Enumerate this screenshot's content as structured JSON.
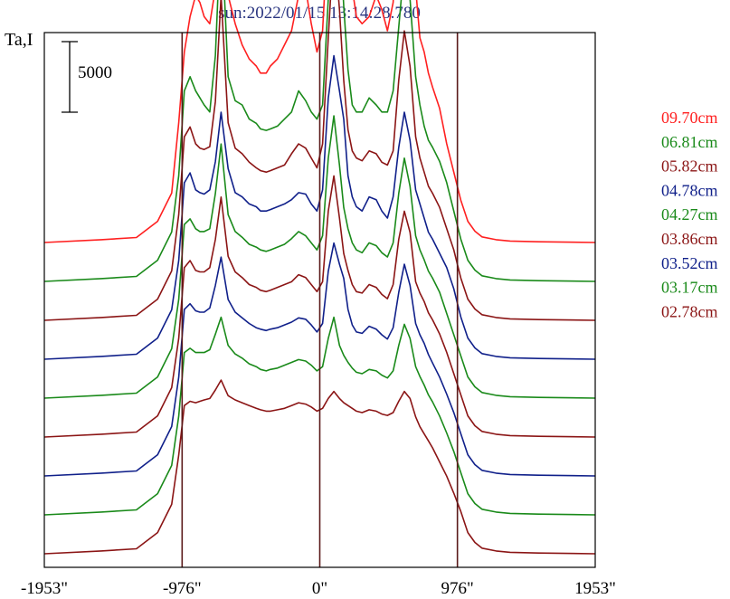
{
  "chart_data": {
    "type": "line",
    "title": "sun:2022/01/15 13:14:28.780",
    "ylabel": "Ta,I",
    "scale_bar_label": "5000",
    "scale_bar_value": 5000,
    "xlim": [
      -1953,
      1953
    ],
    "x_ticks": [
      {
        "value": -1953,
        "label": "-1953\""
      },
      {
        "value": -976,
        "label": "-976\""
      },
      {
        "value": 0,
        "label": "0\""
      },
      {
        "value": 976,
        "label": "976\""
      },
      {
        "value": 1953,
        "label": "1953\""
      }
    ],
    "vertical_lines": [
      -976,
      0,
      976
    ],
    "colors": {
      "red": "#ff2020",
      "green": "#1a8a1a",
      "maroon": "#8b1515",
      "navy": "#10208a",
      "axis": "#000000",
      "title": "#2a3580",
      "marker": "#5a1a1a"
    },
    "x": [
      -1953,
      -1550,
      -1300,
      -1150,
      -1050,
      -1000,
      -960,
      -920,
      -880,
      -850,
      -820,
      -780,
      -740,
      -700,
      -650,
      -600,
      -550,
      -500,
      -450,
      -420,
      -380,
      -350,
      -300,
      -250,
      -200,
      -150,
      -100,
      -60,
      -20,
      20,
      60,
      100,
      140,
      170,
      200,
      230,
      260,
      300,
      350,
      400,
      440,
      480,
      520,
      560,
      600,
      640,
      680,
      710,
      740,
      770,
      800,
      850,
      900,
      950,
      1000,
      1050,
      1100,
      1150,
      1250,
      1350,
      1550,
      1953
    ],
    "series": [
      {
        "legend": "09.70cm",
        "color": "red",
        "base": 0,
        "values": [
          0,
          200,
          350,
          1500,
          3500,
          8500,
          13500,
          16000,
          17500,
          17000,
          16000,
          15500,
          18000,
          27500,
          17500,
          15500,
          14000,
          13000,
          12500,
          12000,
          12000,
          12500,
          13000,
          14000,
          15000,
          17500,
          18000,
          15500,
          13500,
          15000,
          22500,
          30000,
          34000,
          31000,
          23000,
          18000,
          16000,
          15500,
          16000,
          17500,
          16500,
          15000,
          17000,
          24000,
          28500,
          26000,
          18000,
          14500,
          13500,
          12000,
          11000,
          9500,
          7000,
          5000,
          3000,
          1500,
          800,
          400,
          200,
          100,
          50,
          0
        ]
      },
      {
        "legend": "06.81cm",
        "color": "green",
        "base": 0,
        "values": [
          0,
          200,
          350,
          1500,
          3500,
          7500,
          13500,
          14500,
          13500,
          13000,
          12500,
          12000,
          16000,
          25500,
          14500,
          12800,
          12500,
          11500,
          11200,
          10800,
          10700,
          10800,
          11000,
          11500,
          12000,
          13500,
          12800,
          12000,
          11500,
          12500,
          20000,
          29000,
          25000,
          19500,
          15000,
          12500,
          12000,
          12000,
          13000,
          12500,
          12000,
          12000,
          13500,
          18000,
          22500,
          20000,
          14500,
          12500,
          11000,
          10000,
          9500,
          8500,
          7000,
          5000,
          3000,
          1500,
          800,
          400,
          200,
          100,
          50,
          0
        ]
      },
      {
        "legend": "05.82cm",
        "color": "maroon",
        "base": 0,
        "values": [
          0,
          200,
          350,
          1500,
          3500,
          7500,
          13000,
          13700,
          12500,
          12200,
          12100,
          12300,
          15500,
          23000,
          14000,
          12200,
          11800,
          11200,
          10800,
          10600,
          10500,
          10600,
          10800,
          11000,
          11800,
          12500,
          12200,
          11500,
          10800,
          12500,
          20000,
          27000,
          22000,
          17000,
          13500,
          12000,
          11500,
          11300,
          12000,
          11800,
          11200,
          11000,
          12000,
          17000,
          20500,
          18000,
          13000,
          11500,
          10500,
          9500,
          9000,
          8000,
          6500,
          5000,
          3000,
          1500,
          800,
          400,
          200,
          100,
          50,
          0
        ]
      },
      {
        "legend": "04.78cm",
        "color": "navy",
        "base": 0,
        "values": [
          0,
          200,
          350,
          1500,
          3500,
          7000,
          12500,
          13200,
          12000,
          11800,
          11700,
          12000,
          14000,
          17500,
          13500,
          11800,
          11500,
          11000,
          10800,
          10500,
          10500,
          10600,
          10800,
          11000,
          11300,
          11800,
          11700,
          11000,
          10500,
          12000,
          18500,
          21500,
          19000,
          17000,
          13000,
          11500,
          10800,
          10500,
          11500,
          11300,
          10500,
          10000,
          11500,
          15000,
          17500,
          15500,
          12000,
          11000,
          10000,
          9000,
          8500,
          7500,
          6500,
          5000,
          3000,
          1500,
          800,
          400,
          200,
          100,
          50,
          0
        ]
      },
      {
        "legend": "04.27cm",
        "color": "green",
        "base": 0,
        "values": [
          0,
          200,
          350,
          1500,
          3500,
          7000,
          12300,
          12700,
          12000,
          11800,
          11800,
          12000,
          14500,
          18000,
          13000,
          11800,
          11400,
          10900,
          10700,
          10500,
          10400,
          10500,
          10700,
          10900,
          11300,
          11800,
          11500,
          11000,
          10500,
          11500,
          17000,
          20000,
          16500,
          13500,
          12000,
          11000,
          10500,
          10300,
          11000,
          10800,
          10300,
          10000,
          11000,
          14500,
          17000,
          15000,
          11500,
          10500,
          9800,
          9000,
          8500,
          7500,
          6000,
          4500,
          3000,
          1500,
          800,
          400,
          200,
          100,
          50,
          0
        ]
      },
      {
        "legend": "03.86cm",
        "color": "maroon",
        "base": 0,
        "values": [
          0,
          200,
          350,
          1500,
          3500,
          7000,
          12000,
          12500,
          11800,
          11700,
          11700,
          12000,
          14000,
          17000,
          12800,
          11700,
          11300,
          10800,
          10600,
          10400,
          10300,
          10400,
          10600,
          10800,
          11000,
          11500,
          11300,
          10800,
          10300,
          11000,
          16000,
          18500,
          15500,
          13000,
          11800,
          10800,
          10300,
          10200,
          10800,
          10600,
          10100,
          9800,
          10800,
          14000,
          16000,
          14500,
          11000,
          10200,
          9600,
          8800,
          8300,
          7300,
          6000,
          4500,
          3000,
          1500,
          800,
          400,
          200,
          100,
          50,
          0
        ]
      },
      {
        "legend": "03.52cm",
        "color": "navy",
        "base": 0,
        "values": [
          0,
          200,
          350,
          1500,
          3500,
          7000,
          11800,
          12200,
          11700,
          11600,
          11600,
          11900,
          13500,
          15500,
          12500,
          11600,
          11200,
          10800,
          10500,
          10400,
          10300,
          10400,
          10500,
          10700,
          10900,
          11200,
          11100,
          10700,
          10200,
          10800,
          14500,
          16500,
          15000,
          14000,
          11800,
          10700,
          10200,
          10100,
          10600,
          10400,
          10000,
          9700,
          10500,
          13000,
          15000,
          13500,
          10800,
          10000,
          9400,
          8600,
          8000,
          7000,
          5800,
          4500,
          3000,
          1500,
          800,
          400,
          200,
          100,
          50,
          0
        ]
      },
      {
        "legend": "03.17cm",
        "color": "green",
        "base": 0,
        "values": [
          0,
          200,
          350,
          1500,
          3500,
          7000,
          11500,
          11800,
          11500,
          11500,
          11500,
          11700,
          12800,
          14000,
          12000,
          11400,
          11100,
          10700,
          10500,
          10300,
          10200,
          10300,
          10400,
          10600,
          10800,
          11000,
          10900,
          10600,
          10200,
          10500,
          12500,
          14000,
          12000,
          11300,
          10800,
          10400,
          10100,
          10000,
          10300,
          10200,
          9900,
          9700,
          10200,
          12000,
          13500,
          12500,
          10500,
          9800,
          9200,
          8500,
          8000,
          7000,
          5800,
          4500,
          3000,
          1500,
          800,
          400,
          200,
          100,
          50,
          0
        ]
      },
      {
        "legend": "02.78cm",
        "color": "maroon",
        "base": 0,
        "values": [
          0,
          200,
          350,
          1500,
          3500,
          7000,
          10500,
          10800,
          10700,
          10800,
          10900,
          11000,
          11600,
          12300,
          11200,
          10900,
          10700,
          10500,
          10300,
          10200,
          10100,
          10100,
          10200,
          10300,
          10500,
          10700,
          10600,
          10400,
          10100,
          10300,
          11000,
          11500,
          11000,
          10700,
          10500,
          10300,
          10100,
          10000,
          10200,
          10100,
          9900,
          9800,
          10000,
          10800,
          11500,
          11000,
          9700,
          9000,
          8500,
          8000,
          7500,
          6500,
          5500,
          4300,
          3000,
          1500,
          800,
          400,
          200,
          100,
          50,
          0
        ]
      }
    ]
  }
}
